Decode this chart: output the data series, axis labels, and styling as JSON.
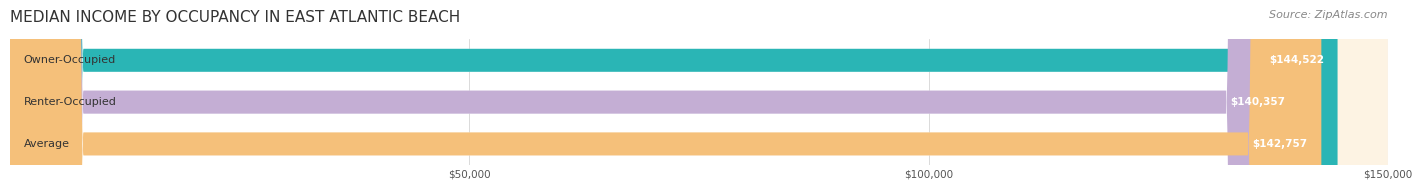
{
  "title": "MEDIAN INCOME BY OCCUPANCY IN EAST ATLANTIC BEACH",
  "source": "Source: ZipAtlas.com",
  "categories": [
    "Owner-Occupied",
    "Renter-Occupied",
    "Average"
  ],
  "values": [
    144522,
    140357,
    142757
  ],
  "bar_colors": [
    "#2ab5b5",
    "#c4aed4",
    "#f5c07a"
  ],
  "bar_bg_colors": [
    "#e8f8f8",
    "#f0eaf6",
    "#fdf3e3"
  ],
  "value_labels": [
    "$144,522",
    "$140,357",
    "$142,757"
  ],
  "xlim": [
    0,
    150000
  ],
  "xticks": [
    0,
    50000,
    100000,
    150000
  ],
  "xtick_labels": [
    "",
    "$50,000",
    "$100,000",
    "$150,000"
  ],
  "title_fontsize": 11,
  "source_fontsize": 8,
  "label_fontsize": 8,
  "value_fontsize": 7.5,
  "background_color": "#ffffff",
  "bar_height": 0.55
}
